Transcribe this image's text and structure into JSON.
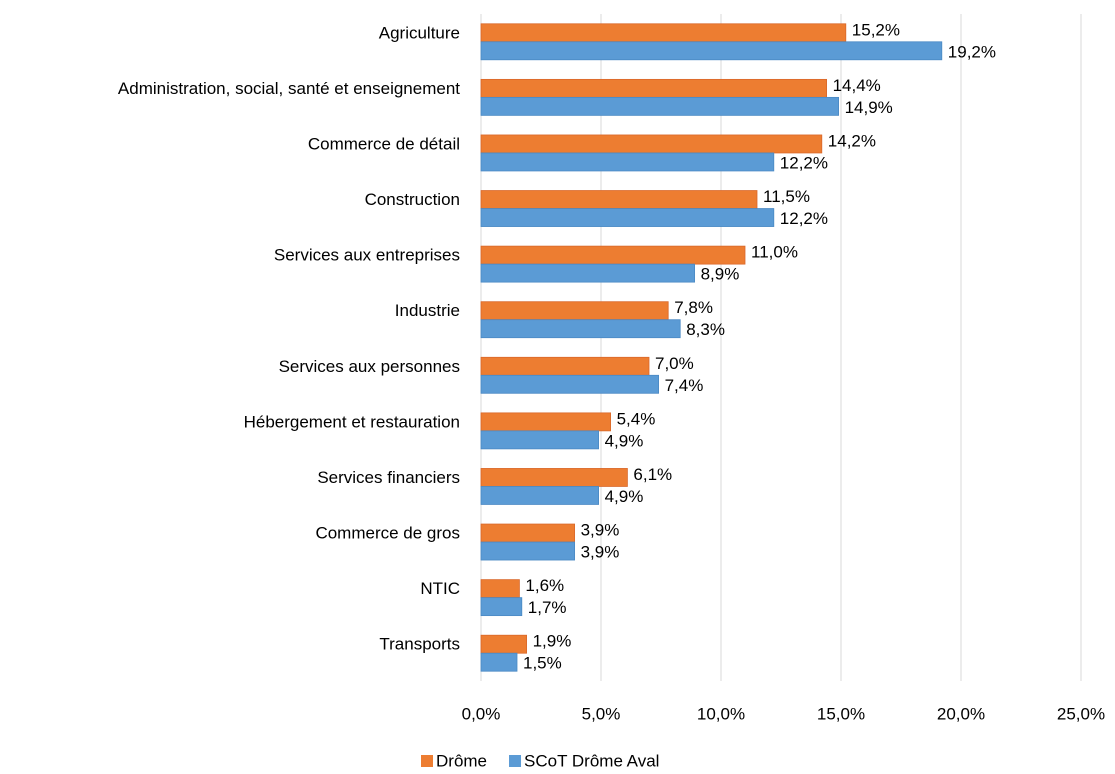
{
  "chart_data": {
    "type": "barh",
    "categories": [
      "Agriculture",
      "Administration, social, santé et enseignement",
      "Commerce de détail",
      "Construction",
      "Services aux entreprises",
      "Industrie",
      "Services aux personnes",
      "Hébergement et restauration",
      "Services financiers",
      "Commerce de gros",
      "NTIC",
      "Transports"
    ],
    "series": [
      {
        "name": "Drôme",
        "color": "#ed7d31",
        "values": [
          15.2,
          14.4,
          14.2,
          11.5,
          11.0,
          7.8,
          7.0,
          5.4,
          6.1,
          3.9,
          1.6,
          1.9
        ],
        "value_labels": [
          "15,2%",
          "14,4%",
          "14,2%",
          "11,5%",
          "11,0%",
          "7,8%",
          "7,0%",
          "5,4%",
          "6,1%",
          "3,9%",
          "1,6%",
          "1,9%"
        ]
      },
      {
        "name": "SCoT Drôme Aval",
        "color": "#5b9bd5",
        "values": [
          19.2,
          14.9,
          12.2,
          12.2,
          8.9,
          8.3,
          7.4,
          4.9,
          4.9,
          3.9,
          1.7,
          1.5
        ],
        "value_labels": [
          "19,2%",
          "14,9%",
          "12,2%",
          "12,2%",
          "8,9%",
          "8,3%",
          "7,4%",
          "4,9%",
          "4,9%",
          "3,9%",
          "1,7%",
          "1,5%"
        ]
      }
    ],
    "xlim": [
      0,
      25
    ],
    "xticks": [
      {
        "value": 0,
        "label": "0,0%"
      },
      {
        "value": 5,
        "label": "5,0%"
      },
      {
        "value": 10,
        "label": "10,0%"
      },
      {
        "value": 15,
        "label": "15,0%"
      },
      {
        "value": 20,
        "label": "20,0%"
      },
      {
        "value": 25,
        "label": "25,0%"
      }
    ],
    "grid": true,
    "legend": "bottom"
  }
}
